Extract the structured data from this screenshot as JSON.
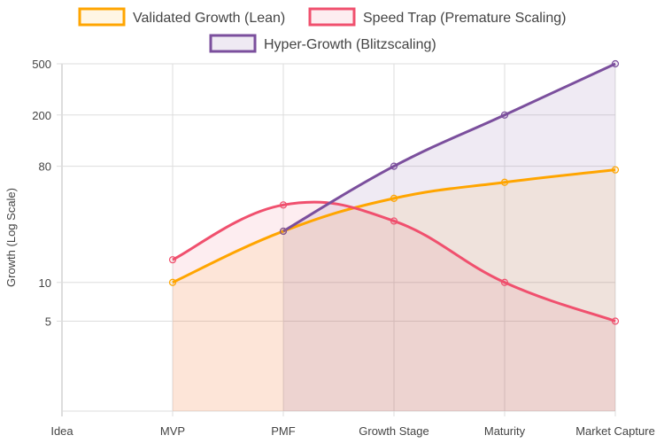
{
  "chart_data": {
    "type": "line",
    "title": "",
    "xlabel": "",
    "ylabel": "Growth (Log Scale)",
    "yscale": "log",
    "ylim": [
      1,
      500
    ],
    "yticks": [
      5,
      10,
      80,
      200,
      500
    ],
    "grid": true,
    "legend_position": "top",
    "categories": [
      "Idea",
      "MVP",
      "PMF",
      "Growth Stage",
      "Maturity",
      "Market Capture"
    ],
    "series": [
      {
        "name": "Validated Growth (Lean)",
        "color": "#FFA500",
        "fill": "rgba(255,165,0,0.10)",
        "values": [
          null,
          10,
          25,
          45,
          60,
          75
        ]
      },
      {
        "name": "Speed Trap (Premature Scaling)",
        "color": "#F0506E",
        "fill": "rgba(240,80,110,0.10)",
        "values": [
          null,
          15,
          40,
          30,
          10,
          5
        ]
      },
      {
        "name": "Hyper-Growth (Blitzscaling)",
        "color": "#7B4F9D",
        "fill": "rgba(123,79,157,0.12)",
        "values": [
          null,
          null,
          25,
          80,
          200,
          500
        ]
      }
    ]
  }
}
